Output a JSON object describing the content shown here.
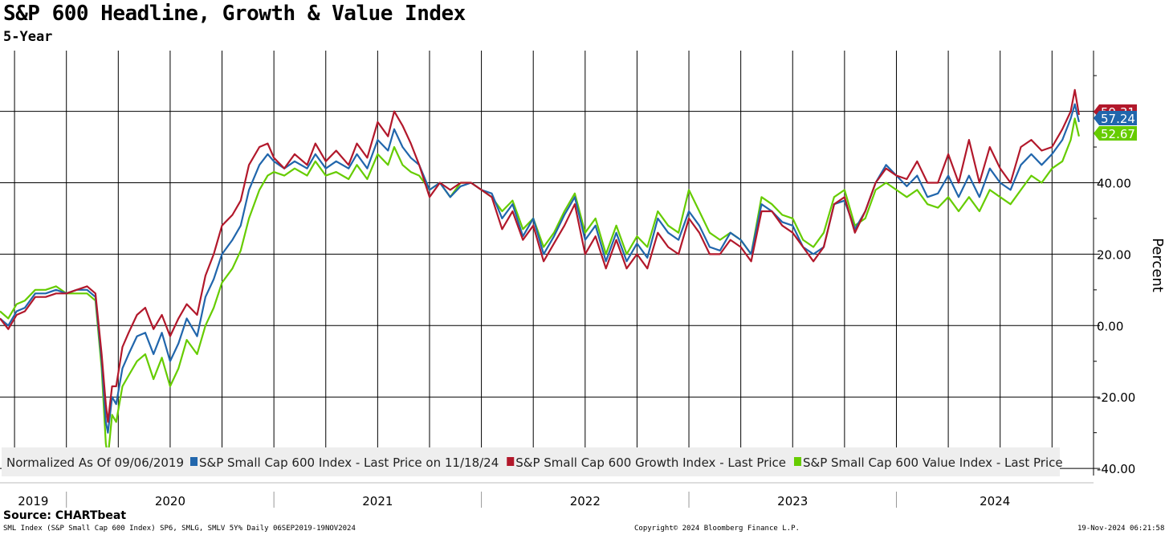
{
  "header": {
    "title": "S&P 600 Headline, Growth & Value Index",
    "subtitle": "5-Year"
  },
  "source": "Source: CHARTbeat",
  "footer": {
    "left": "SML Index (S&P Small Cap 600 Index) SP6, SMLG, SMLV 5Y%  Daily 06SEP2019-19NOV2024",
    "center": "Copyright© 2024 Bloomberg Finance L.P.",
    "right": "19-Nov-2024 06:21:58"
  },
  "colors": {
    "headline": "#2166ac",
    "growth": "#b2182b",
    "value": "#66cc00",
    "grid": "#000000"
  },
  "chart_data": {
    "type": "line",
    "ylabel": "Percent",
    "xlim": [
      2019.68,
      2024.95
    ],
    "ylim": [
      -42,
      77
    ],
    "yticks": [
      -40,
      -20,
      0,
      20,
      40
    ],
    "ytick_labels": [
      "-40.00",
      "-20.00",
      "0.00",
      "20.00",
      "40.00"
    ],
    "year_labels": [
      "2019",
      "2020",
      "2021",
      "2022",
      "2023",
      "2024"
    ],
    "grid": true,
    "legend_position": "bottom",
    "legend_lead": "Normalized As Of 09/06/2019",
    "series": [
      {
        "name": "S&P Small Cap 600 Index - Last Price on 11/18/24",
        "key": "headline",
        "last_label": "57.24",
        "x": [
          2019.68,
          2019.72,
          2019.76,
          2019.8,
          2019.85,
          2019.9,
          2019.95,
          2020.0,
          2020.05,
          2020.1,
          2020.14,
          2020.17,
          2020.19,
          2020.2,
          2020.22,
          2020.24,
          2020.27,
          2020.3,
          2020.34,
          2020.38,
          2020.42,
          2020.46,
          2020.5,
          2020.54,
          2020.58,
          2020.63,
          2020.67,
          2020.71,
          2020.75,
          2020.8,
          2020.84,
          2020.88,
          2020.93,
          2020.97,
          2021.0,
          2021.05,
          2021.1,
          2021.16,
          2021.2,
          2021.25,
          2021.3,
          2021.36,
          2021.4,
          2021.45,
          2021.5,
          2021.55,
          2021.58,
          2021.62,
          2021.66,
          2021.7,
          2021.75,
          2021.8,
          2021.85,
          2021.9,
          2021.95,
          2022.0,
          2022.05,
          2022.1,
          2022.15,
          2022.2,
          2022.25,
          2022.3,
          2022.35,
          2022.4,
          2022.45,
          2022.5,
          2022.55,
          2022.6,
          2022.65,
          2022.7,
          2022.75,
          2022.8,
          2022.85,
          2022.9,
          2022.95,
          2023.0,
          2023.05,
          2023.1,
          2023.15,
          2023.2,
          2023.25,
          2023.3,
          2023.35,
          2023.4,
          2023.45,
          2023.5,
          2023.55,
          2023.6,
          2023.65,
          2023.7,
          2023.75,
          2023.8,
          2023.85,
          2023.9,
          2023.95,
          2024.0,
          2024.05,
          2024.1,
          2024.15,
          2024.2,
          2024.25,
          2024.3,
          2024.35,
          2024.4,
          2024.45,
          2024.5,
          2024.55,
          2024.6,
          2024.65,
          2024.7,
          2024.75,
          2024.8,
          2024.84,
          2024.86,
          2024.88
        ],
        "y": [
          2,
          0,
          4,
          5,
          9,
          9,
          10,
          9,
          10,
          10,
          8,
          -10,
          -27,
          -30,
          -20,
          -22,
          -12,
          -8,
          -3,
          -2,
          -8,
          -2,
          -10,
          -5,
          2,
          -3,
          8,
          13,
          20,
          24,
          28,
          38,
          45,
          48,
          46,
          44,
          46,
          44,
          48,
          44,
          46,
          44,
          48,
          44,
          52,
          49,
          55,
          50,
          47,
          45,
          38,
          40,
          36,
          39,
          40,
          38,
          37,
          30,
          34,
          25,
          30,
          20,
          25,
          31,
          36,
          24,
          28,
          18,
          26,
          18,
          23,
          19,
          30,
          26,
          24,
          32,
          28,
          22,
          21,
          26,
          24,
          20,
          34,
          32,
          29,
          28,
          22,
          20,
          22,
          34,
          35,
          27,
          32,
          40,
          45,
          42,
          39,
          42,
          36,
          37,
          42,
          36,
          42,
          36,
          44,
          40,
          38,
          45,
          48,
          45,
          48,
          52,
          58,
          62,
          57
        ],
        "smooth": 1
      },
      {
        "name": "S&P Small Cap 600 Growth Index - Last Price",
        "key": "growth",
        "last_label": "59.31",
        "x": [
          2019.68,
          2019.72,
          2019.76,
          2019.8,
          2019.85,
          2019.9,
          2019.95,
          2020.0,
          2020.05,
          2020.1,
          2020.14,
          2020.17,
          2020.19,
          2020.2,
          2020.22,
          2020.24,
          2020.27,
          2020.3,
          2020.34,
          2020.38,
          2020.42,
          2020.46,
          2020.5,
          2020.54,
          2020.58,
          2020.63,
          2020.67,
          2020.71,
          2020.75,
          2020.8,
          2020.84,
          2020.88,
          2020.93,
          2020.97,
          2021.0,
          2021.05,
          2021.1,
          2021.16,
          2021.2,
          2021.25,
          2021.3,
          2021.36,
          2021.4,
          2021.45,
          2021.5,
          2021.55,
          2021.58,
          2021.62,
          2021.66,
          2021.7,
          2021.75,
          2021.8,
          2021.85,
          2021.9,
          2021.95,
          2022.0,
          2022.05,
          2022.1,
          2022.15,
          2022.2,
          2022.25,
          2022.3,
          2022.35,
          2022.4,
          2022.45,
          2022.5,
          2022.55,
          2022.6,
          2022.65,
          2022.7,
          2022.75,
          2022.8,
          2022.85,
          2022.9,
          2022.95,
          2023.0,
          2023.05,
          2023.1,
          2023.15,
          2023.2,
          2023.25,
          2023.3,
          2023.35,
          2023.4,
          2023.45,
          2023.5,
          2023.55,
          2023.6,
          2023.65,
          2023.7,
          2023.75,
          2023.8,
          2023.85,
          2023.9,
          2023.95,
          2024.0,
          2024.05,
          2024.1,
          2024.15,
          2024.2,
          2024.25,
          2024.3,
          2024.35,
          2024.4,
          2024.45,
          2024.5,
          2024.55,
          2024.6,
          2024.65,
          2024.7,
          2024.75,
          2024.8,
          2024.84,
          2024.86,
          2024.88
        ],
        "y": [
          2,
          -1,
          3,
          4,
          8,
          8,
          9,
          9,
          10,
          11,
          9,
          -8,
          -22,
          -27,
          -17,
          -17,
          -6,
          -2,
          3,
          5,
          -1,
          3,
          -3,
          2,
          6,
          3,
          14,
          20,
          28,
          31,
          35,
          45,
          50,
          51,
          47,
          44,
          48,
          45,
          51,
          46,
          49,
          45,
          51,
          47,
          57,
          53,
          60,
          56,
          51,
          45,
          36,
          40,
          38,
          40,
          40,
          38,
          36,
          27,
          32,
          24,
          28,
          18,
          23,
          28,
          34,
          20,
          25,
          16,
          24,
          16,
          20,
          16,
          26,
          22,
          20,
          30,
          26,
          20,
          20,
          24,
          22,
          18,
          32,
          32,
          28,
          26,
          22,
          18,
          22,
          34,
          36,
          26,
          32,
          40,
          44,
          42,
          41,
          46,
          40,
          40,
          48,
          40,
          52,
          40,
          50,
          44,
          40,
          50,
          52,
          49,
          50,
          55,
          60,
          66,
          59
        ],
        "smooth": 1
      },
      {
        "name": "S&P Small Cap 600 Value Index - Last Price",
        "key": "value",
        "last_label": "52.67",
        "x": [
          2019.68,
          2019.72,
          2019.76,
          2019.8,
          2019.85,
          2019.9,
          2019.95,
          2020.0,
          2020.05,
          2020.1,
          2020.14,
          2020.17,
          2020.19,
          2020.2,
          2020.22,
          2020.24,
          2020.27,
          2020.3,
          2020.34,
          2020.38,
          2020.42,
          2020.46,
          2020.5,
          2020.54,
          2020.58,
          2020.63,
          2020.67,
          2020.71,
          2020.75,
          2020.8,
          2020.84,
          2020.88,
          2020.93,
          2020.97,
          2021.0,
          2021.05,
          2021.1,
          2021.16,
          2021.2,
          2021.25,
          2021.3,
          2021.36,
          2021.4,
          2021.45,
          2021.5,
          2021.55,
          2021.58,
          2021.62,
          2021.66,
          2021.7,
          2021.75,
          2021.8,
          2021.85,
          2021.9,
          2021.95,
          2022.0,
          2022.05,
          2022.1,
          2022.15,
          2022.2,
          2022.25,
          2022.3,
          2022.35,
          2022.4,
          2022.45,
          2022.5,
          2022.55,
          2022.6,
          2022.65,
          2022.7,
          2022.75,
          2022.8,
          2022.85,
          2022.9,
          2022.95,
          2023.0,
          2023.05,
          2023.1,
          2023.15,
          2023.2,
          2023.25,
          2023.3,
          2023.35,
          2023.4,
          2023.45,
          2023.5,
          2023.55,
          2023.6,
          2023.65,
          2023.7,
          2023.75,
          2023.8,
          2023.85,
          2023.9,
          2023.95,
          2024.0,
          2024.05,
          2024.1,
          2024.15,
          2024.2,
          2024.25,
          2024.3,
          2024.35,
          2024.4,
          2024.45,
          2024.5,
          2024.55,
          2024.6,
          2024.65,
          2024.7,
          2024.75,
          2024.8,
          2024.84,
          2024.86,
          2024.88
        ],
        "y": [
          4,
          2,
          6,
          7,
          10,
          10,
          11,
          9,
          9,
          9,
          7,
          -12,
          -33,
          -37,
          -25,
          -27,
          -17,
          -14,
          -10,
          -8,
          -15,
          -9,
          -17,
          -12,
          -4,
          -8,
          0,
          5,
          12,
          16,
          21,
          30,
          38,
          42,
          43,
          42,
          44,
          42,
          46,
          42,
          43,
          41,
          45,
          41,
          48,
          45,
          50,
          45,
          43,
          42,
          38,
          40,
          36,
          40,
          40,
          38,
          36,
          32,
          35,
          27,
          30,
          22,
          26,
          32,
          37,
          26,
          30,
          20,
          28,
          20,
          25,
          22,
          32,
          28,
          26,
          38,
          32,
          26,
          24,
          26,
          24,
          20,
          36,
          34,
          31,
          30,
          24,
          22,
          26,
          36,
          38,
          28,
          30,
          38,
          40,
          38,
          36,
          38,
          34,
          33,
          36,
          32,
          36,
          32,
          38,
          36,
          34,
          38,
          42,
          40,
          44,
          46,
          52,
          58,
          53
        ],
        "smooth": 1
      }
    ]
  }
}
